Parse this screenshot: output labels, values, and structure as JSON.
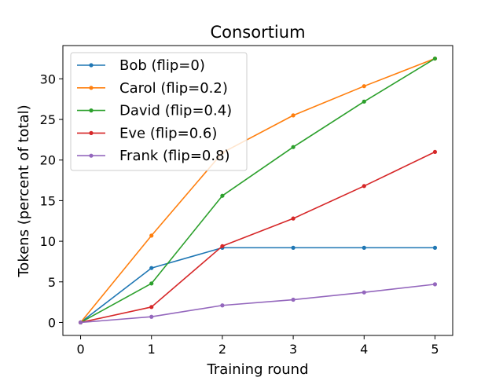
{
  "chart_data": {
    "type": "line",
    "title": "Consortium",
    "xlabel": "Training round",
    "ylabel": "Tokens (percent of total)",
    "xlim": [
      -0.25,
      5.25
    ],
    "ylim": [
      -1.6,
      34.1
    ],
    "xticks": [
      0,
      1,
      2,
      3,
      4,
      5
    ],
    "yticks": [
      0,
      5,
      10,
      15,
      20,
      25,
      30
    ],
    "x": [
      0,
      1,
      2,
      3,
      4,
      5
    ],
    "legend_position": "upper-left",
    "grid": false,
    "series": [
      {
        "name": "Bob (flip=0)",
        "color": "#1f77b4",
        "values": [
          0,
          6.7,
          9.2,
          9.2,
          9.2,
          9.2
        ]
      },
      {
        "name": "Carol (flip=0.2)",
        "color": "#ff7f0e",
        "values": [
          0,
          10.7,
          20.9,
          25.5,
          29.1,
          32.5
        ]
      },
      {
        "name": "David (flip=0.4)",
        "color": "#2ca02c",
        "values": [
          0,
          4.8,
          15.6,
          21.6,
          27.2,
          32.5
        ]
      },
      {
        "name": "Eve (flip=0.6)",
        "color": "#d62728",
        "values": [
          0,
          1.9,
          9.4,
          12.8,
          16.8,
          21.0
        ]
      },
      {
        "name": "Frank (flip=0.8)",
        "color": "#9467bd",
        "values": [
          0,
          0.7,
          2.1,
          2.8,
          3.7,
          4.7
        ]
      }
    ]
  }
}
